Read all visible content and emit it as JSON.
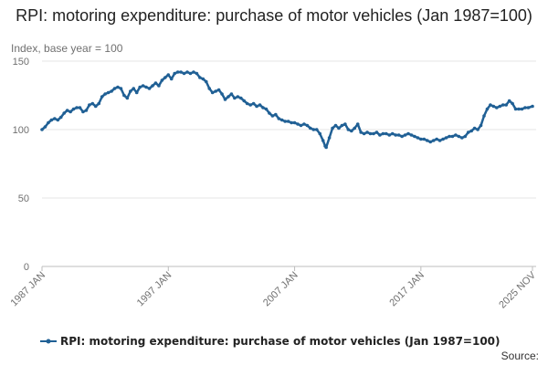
{
  "chart_data": {
    "type": "line",
    "title": "RPI: motoring expenditure: purchase of motor vehicles (Jan 1987=100)",
    "unit_label": "Index, base year = 100",
    "ylim": [
      0,
      150
    ],
    "y_ticks": [
      0,
      50,
      100,
      150
    ],
    "x_start": "1987 JAN",
    "x_end": "2025 NOV",
    "x_tick_labels": [
      {
        "label": "1987 JAN",
        "t": 1987.0
      },
      {
        "label": "1997 JAN",
        "t": 1997.0
      },
      {
        "label": "2007 JAN",
        "t": 2007.0
      },
      {
        "label": "2017 JAN",
        "t": 2017.0
      },
      {
        "label": "2025 NOV",
        "t": 2025.833
      }
    ],
    "grid": true,
    "legend": "bottom",
    "series": [
      {
        "name": "RPI: motoring expenditure: purchase of motor vehicles (Jan 1987=100)",
        "color": "#206095",
        "points": [
          [
            1987.0,
            100
          ],
          [
            1987.25,
            102
          ],
          [
            1987.5,
            105
          ],
          [
            1987.75,
            107
          ],
          [
            1988.0,
            108
          ],
          [
            1988.25,
            107
          ],
          [
            1988.5,
            109
          ],
          [
            1988.75,
            112
          ],
          [
            1989.0,
            114
          ],
          [
            1989.25,
            113
          ],
          [
            1989.5,
            115
          ],
          [
            1989.75,
            116
          ],
          [
            1990.0,
            116
          ],
          [
            1990.25,
            113
          ],
          [
            1990.5,
            114
          ],
          [
            1990.75,
            118
          ],
          [
            1991.0,
            119
          ],
          [
            1991.25,
            117
          ],
          [
            1991.5,
            119
          ],
          [
            1991.75,
            124
          ],
          [
            1992.0,
            126
          ],
          [
            1992.25,
            127
          ],
          [
            1992.5,
            128
          ],
          [
            1992.75,
            130
          ],
          [
            1993.0,
            131
          ],
          [
            1993.25,
            130
          ],
          [
            1993.5,
            125
          ],
          [
            1993.75,
            123
          ],
          [
            1994.0,
            128
          ],
          [
            1994.25,
            130
          ],
          [
            1994.5,
            127
          ],
          [
            1994.75,
            131
          ],
          [
            1995.0,
            132
          ],
          [
            1995.25,
            131
          ],
          [
            1995.5,
            130
          ],
          [
            1995.75,
            132
          ],
          [
            1996.0,
            134
          ],
          [
            1996.25,
            132
          ],
          [
            1996.5,
            136
          ],
          [
            1996.75,
            138
          ],
          [
            1997.0,
            140
          ],
          [
            1997.25,
            137
          ],
          [
            1997.5,
            141
          ],
          [
            1997.75,
            142
          ],
          [
            1998.0,
            142
          ],
          [
            1998.25,
            141
          ],
          [
            1998.5,
            142
          ],
          [
            1998.75,
            141
          ],
          [
            1999.0,
            142
          ],
          [
            1999.25,
            141
          ],
          [
            1999.5,
            138
          ],
          [
            1999.75,
            137
          ],
          [
            2000.0,
            135
          ],
          [
            2000.25,
            130
          ],
          [
            2000.5,
            127
          ],
          [
            2000.75,
            128
          ],
          [
            2001.0,
            129
          ],
          [
            2001.25,
            126
          ],
          [
            2001.5,
            122
          ],
          [
            2001.75,
            124
          ],
          [
            2002.0,
            126
          ],
          [
            2002.25,
            123
          ],
          [
            2002.5,
            124
          ],
          [
            2002.75,
            123
          ],
          [
            2003.0,
            121
          ],
          [
            2003.25,
            119
          ],
          [
            2003.5,
            118
          ],
          [
            2003.75,
            119
          ],
          [
            2004.0,
            117
          ],
          [
            2004.25,
            118
          ],
          [
            2004.5,
            116
          ],
          [
            2004.75,
            115
          ],
          [
            2005.0,
            112
          ],
          [
            2005.25,
            110
          ],
          [
            2005.5,
            111
          ],
          [
            2005.75,
            108
          ],
          [
            2006.0,
            107
          ],
          [
            2006.25,
            106
          ],
          [
            2006.5,
            106
          ],
          [
            2006.75,
            105
          ],
          [
            2007.0,
            105
          ],
          [
            2007.25,
            104
          ],
          [
            2007.5,
            103
          ],
          [
            2007.75,
            104
          ],
          [
            2008.0,
            103
          ],
          [
            2008.25,
            101
          ],
          [
            2008.5,
            100
          ],
          [
            2008.75,
            100
          ],
          [
            2009.0,
            97
          ],
          [
            2009.25,
            92
          ],
          [
            2009.42,
            88
          ],
          [
            2009.5,
            87
          ],
          [
            2009.75,
            94
          ],
          [
            2010.0,
            101
          ],
          [
            2010.25,
            103
          ],
          [
            2010.5,
            101
          ],
          [
            2010.75,
            103
          ],
          [
            2011.0,
            104
          ],
          [
            2011.25,
            100
          ],
          [
            2011.5,
            99
          ],
          [
            2011.75,
            101
          ],
          [
            2012.0,
            104
          ],
          [
            2012.25,
            98
          ],
          [
            2012.5,
            97
          ],
          [
            2012.75,
            98
          ],
          [
            2013.0,
            97
          ],
          [
            2013.25,
            97
          ],
          [
            2013.5,
            98
          ],
          [
            2013.75,
            96
          ],
          [
            2014.0,
            97
          ],
          [
            2014.25,
            97
          ],
          [
            2014.5,
            96
          ],
          [
            2014.75,
            97
          ],
          [
            2015.0,
            96
          ],
          [
            2015.25,
            96
          ],
          [
            2015.5,
            95
          ],
          [
            2015.75,
            96
          ],
          [
            2016.0,
            97
          ],
          [
            2016.25,
            96
          ],
          [
            2016.5,
            95
          ],
          [
            2016.75,
            94
          ],
          [
            2017.0,
            93
          ],
          [
            2017.25,
            93
          ],
          [
            2017.5,
            92
          ],
          [
            2017.75,
            91
          ],
          [
            2018.0,
            92
          ],
          [
            2018.25,
            93
          ],
          [
            2018.5,
            92
          ],
          [
            2018.75,
            93
          ],
          [
            2019.0,
            94
          ],
          [
            2019.25,
            95
          ],
          [
            2019.5,
            95
          ],
          [
            2019.75,
            96
          ],
          [
            2020.0,
            95
          ],
          [
            2020.25,
            94
          ],
          [
            2020.5,
            95
          ],
          [
            2020.75,
            98
          ],
          [
            2021.0,
            99
          ],
          [
            2021.25,
            101
          ],
          [
            2021.5,
            100
          ],
          [
            2021.75,
            103
          ],
          [
            2022.0,
            110
          ],
          [
            2022.25,
            115
          ],
          [
            2022.5,
            118
          ],
          [
            2022.75,
            117
          ],
          [
            2023.0,
            116
          ],
          [
            2023.25,
            117
          ],
          [
            2023.5,
            118
          ],
          [
            2023.75,
            118
          ],
          [
            2024.0,
            121
          ],
          [
            2024.25,
            119
          ],
          [
            2024.5,
            115
          ],
          [
            2024.75,
            115
          ],
          [
            2025.0,
            115
          ],
          [
            2025.25,
            116
          ],
          [
            2025.5,
            116
          ],
          [
            2025.833,
            117
          ]
        ]
      }
    ]
  },
  "source_label": "Source:"
}
